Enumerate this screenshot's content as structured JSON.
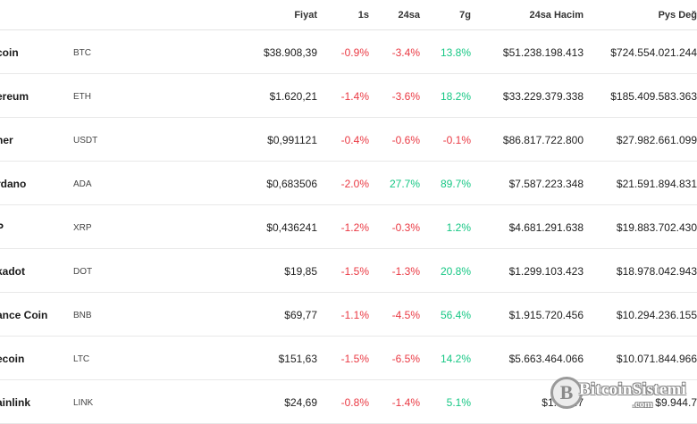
{
  "header": {
    "price": "Fiyat",
    "h1": "1s",
    "h24": "24sa",
    "d7": "7g",
    "volume": "24sa Hacim",
    "market_cap": "Pys Değ"
  },
  "rows": [
    {
      "name": "coin",
      "symbol": "BTC",
      "price": "$38.908,39",
      "h1": "-0.9%",
      "h24": "-3.4%",
      "d7": "13.8%",
      "volume": "$51.238.198.413",
      "cap": "$724.554.021.244"
    },
    {
      "name": "ereum",
      "symbol": "ETH",
      "price": "$1.620,21",
      "h1": "-1.4%",
      "h24": "-3.6%",
      "d7": "18.2%",
      "volume": "$33.229.379.338",
      "cap": "$185.409.583.363"
    },
    {
      "name": "her",
      "symbol": "USDT",
      "price": "$0,991121",
      "h1": "-0.4%",
      "h24": "-0.6%",
      "d7": "-0.1%",
      "volume": "$86.817.722.800",
      "cap": "$27.982.661.099"
    },
    {
      "name": "rdano",
      "symbol": "ADA",
      "price": "$0,683506",
      "h1": "-2.0%",
      "h24": "27.7%",
      "d7": "89.7%",
      "volume": "$7.587.223.348",
      "cap": "$21.591.894.831"
    },
    {
      "name": "P",
      "symbol": "XRP",
      "price": "$0,436241",
      "h1": "-1.2%",
      "h24": "-0.3%",
      "d7": "1.2%",
      "volume": "$4.681.291.638",
      "cap": "$19.883.702.430"
    },
    {
      "name": "kadot",
      "symbol": "DOT",
      "price": "$19,85",
      "h1": "-1.5%",
      "h24": "-1.3%",
      "d7": "20.8%",
      "volume": "$1.299.103.423",
      "cap": "$18.978.042.943"
    },
    {
      "name": "ance Coin",
      "symbol": "BNB",
      "price": "$69,77",
      "h1": "-1.1%",
      "h24": "-4.5%",
      "d7": "56.4%",
      "volume": "$1.915.720.456",
      "cap": "$10.294.236.155"
    },
    {
      "name": "ecoin",
      "symbol": "LTC",
      "price": "$151,63",
      "h1": "-1.5%",
      "h24": "-6.5%",
      "d7": "14.2%",
      "volume": "$5.663.464.066",
      "cap": "$10.071.844.966"
    },
    {
      "name": "ainlink",
      "symbol": "LINK",
      "price": "$24,69",
      "h1": "-0.8%",
      "h24": "-1.4%",
      "d7": "5.1%",
      "volume": "$1.777.7",
      "cap": "$9.944.7"
    }
  ],
  "colors": {
    "negative": "#ea3943",
    "positive": "#16c784"
  },
  "watermark": {
    "brand": "BitcoinSistemi",
    "domain": ".com",
    "icon": "bitcoin-coin-icon"
  }
}
